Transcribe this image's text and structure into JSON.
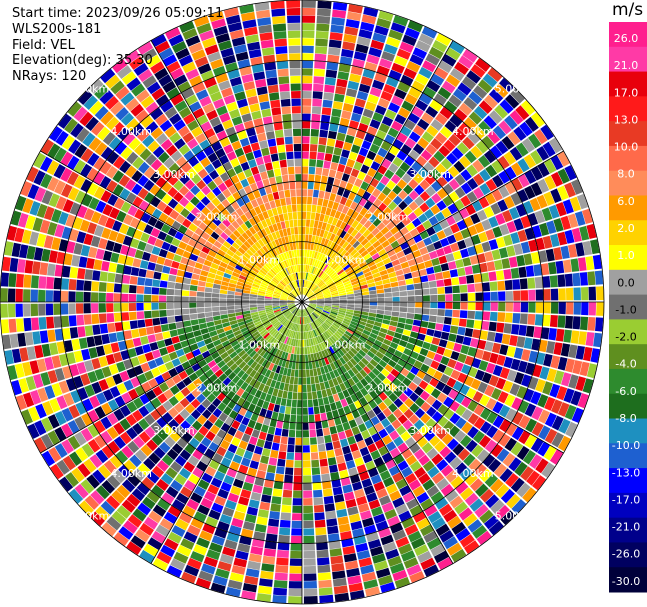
{
  "header": {
    "start_time": "Start time: 2023/09/26 05:09:11",
    "instrument": "WLS200s-181",
    "field": "Field: VEL",
    "elevation": "Elevation(deg): 35.30",
    "nrays": "NRays: 120"
  },
  "colorbar": {
    "unit": "m/s",
    "ticks": [
      "26.0",
      "21.0",
      "17.0",
      "13.0",
      "10.0",
      "8.0",
      "6.0",
      "2.0",
      "1.0",
      "0.0",
      "-1.0",
      "-2.0",
      "-4.0",
      "-6.0",
      "-8.0",
      "-10.0",
      "-13.0",
      "-17.0",
      "-21.0",
      "-26.0",
      "-30.0"
    ],
    "colors": [
      "#ff1f8e",
      "#ff3aa6",
      "#e8000c",
      "#ff1a1a",
      "#e83a24",
      "#ff6a4a",
      "#ff8c5a",
      "#ff9a00",
      "#ffd200",
      "#ffff00",
      "#a0a0a0",
      "#707070",
      "#9acd32",
      "#5f8f1f",
      "#2e8b2e",
      "#1e6e1e",
      "#1e90c0",
      "#1e60d0",
      "#0000ff",
      "#0000c0",
      "#00008b",
      "#000060",
      "#00003a"
    ]
  },
  "chart_data": {
    "type": "polar-ppi",
    "field": "VEL",
    "unit": "m/s",
    "nrays": 120,
    "range_rings_km": [
      1.0,
      2.0,
      3.0,
      4.0,
      5.0
    ],
    "ring_labels": [
      "1.00km",
      "2.00km",
      "3.00km",
      "4.00km",
      "5.00km"
    ],
    "max_range_km": 5.0,
    "colorbar_range": [
      -30.0,
      26.0
    ],
    "velocity_pattern": [
      {
        "sector": "north",
        "inner_km": [
          0.0,
          1.0
        ],
        "value": 2.0
      },
      {
        "sector": "north",
        "inner_km": [
          1.0,
          2.0
        ],
        "value": 6.0
      },
      {
        "sector": "east-west",
        "inner_km": [
          0.0,
          1.2
        ],
        "value": 0.0
      },
      {
        "sector": "south",
        "inner_km": [
          0.0,
          1.0
        ],
        "value": -2.0
      },
      {
        "sector": "south",
        "inner_km": [
          1.0,
          2.0
        ],
        "value": -6.0
      },
      {
        "sector": "all",
        "inner_km": [
          2.0,
          5.0
        ],
        "value": "noise"
      }
    ]
  }
}
